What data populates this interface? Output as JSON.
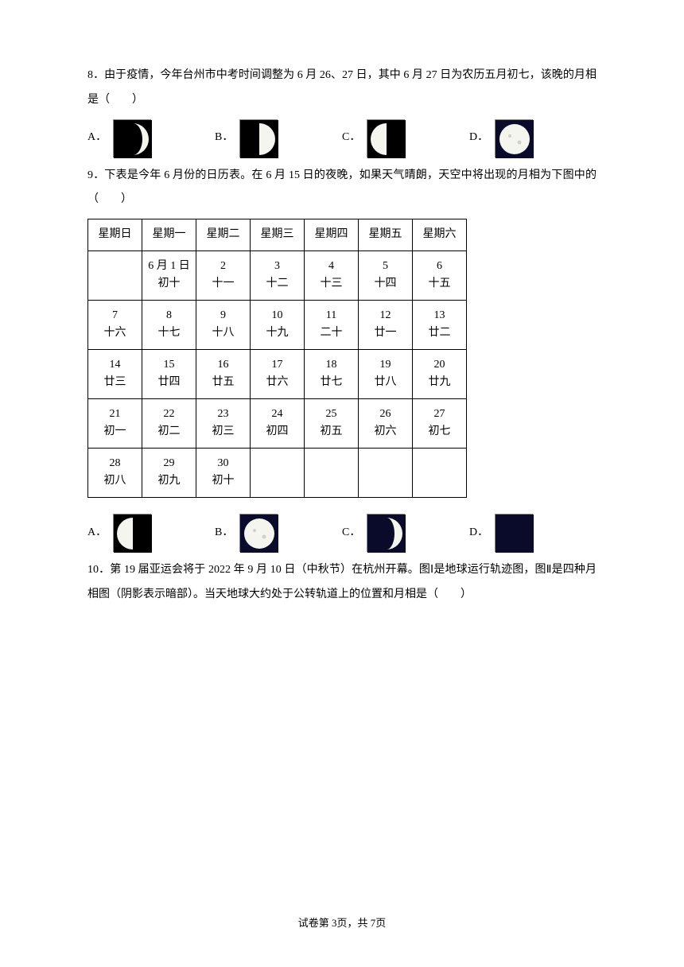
{
  "q8": {
    "text": "8．由于疫情，今年台州市中考时间调整为 6 月 26、27 日，其中 6 月 27 日为农历五月初七，该晚的月相是（　　）",
    "options": {
      "A": "A．",
      "B": "B．",
      "C": "C．",
      "D": "D．"
    }
  },
  "q9": {
    "text": "9．下表是今年 6 月份的日历表。在 6 月 15 日的夜晚，如果天气晴朗，天空中将出现的月相为下图中的（　　）",
    "headers": [
      "星期日",
      "星期一",
      "星期二",
      "星期三",
      "星期四",
      "星期五",
      "星期六"
    ],
    "rows": [
      [
        {
          "d": "",
          "l": ""
        },
        {
          "d": "6 月 1 日",
          "l": "初十"
        },
        {
          "d": "2",
          "l": "十一"
        },
        {
          "d": "3",
          "l": "十二"
        },
        {
          "d": "4",
          "l": "十三"
        },
        {
          "d": "5",
          "l": "十四"
        },
        {
          "d": "6",
          "l": "十五"
        }
      ],
      [
        {
          "d": "7",
          "l": "十六"
        },
        {
          "d": "8",
          "l": "十七"
        },
        {
          "d": "9",
          "l": "十八"
        },
        {
          "d": "10",
          "l": "十九"
        },
        {
          "d": "11",
          "l": "二十"
        },
        {
          "d": "12",
          "l": "廿一"
        },
        {
          "d": "13",
          "l": "廿二"
        }
      ],
      [
        {
          "d": "14",
          "l": "廿三"
        },
        {
          "d": "15",
          "l": "廿四"
        },
        {
          "d": "16",
          "l": "廿五"
        },
        {
          "d": "17",
          "l": "廿六"
        },
        {
          "d": "18",
          "l": "廿七"
        },
        {
          "d": "19",
          "l": "廿八"
        },
        {
          "d": "20",
          "l": "廿九"
        }
      ],
      [
        {
          "d": "21",
          "l": "初一"
        },
        {
          "d": "22",
          "l": "初二"
        },
        {
          "d": "23",
          "l": "初三"
        },
        {
          "d": "24",
          "l": "初四"
        },
        {
          "d": "25",
          "l": "初五"
        },
        {
          "d": "26",
          "l": "初六"
        },
        {
          "d": "27",
          "l": "初七"
        }
      ],
      [
        {
          "d": "28",
          "l": "初八"
        },
        {
          "d": "29",
          "l": "初九"
        },
        {
          "d": "30",
          "l": "初十"
        },
        {
          "d": "",
          "l": ""
        },
        {
          "d": "",
          "l": ""
        },
        {
          "d": "",
          "l": ""
        },
        {
          "d": "",
          "l": ""
        }
      ]
    ],
    "options": {
      "A": "A．",
      "B": "B．",
      "C": "C．",
      "D": "D．"
    }
  },
  "q10": {
    "text": "10．第 19 届亚运会将于 2022 年 9 月 10 日（中秋节）在杭州开幕。图Ⅰ是地球运行轨迹图，图Ⅱ是四种月相图（阴影表示暗部）。当天地球大约处于公转轨道上的位置和月相是（　　）"
  },
  "footer": "试卷第 3页，共 7页",
  "moon_styles": {
    "bg": "#000000",
    "light": "#f5f5f0",
    "size": 48
  }
}
